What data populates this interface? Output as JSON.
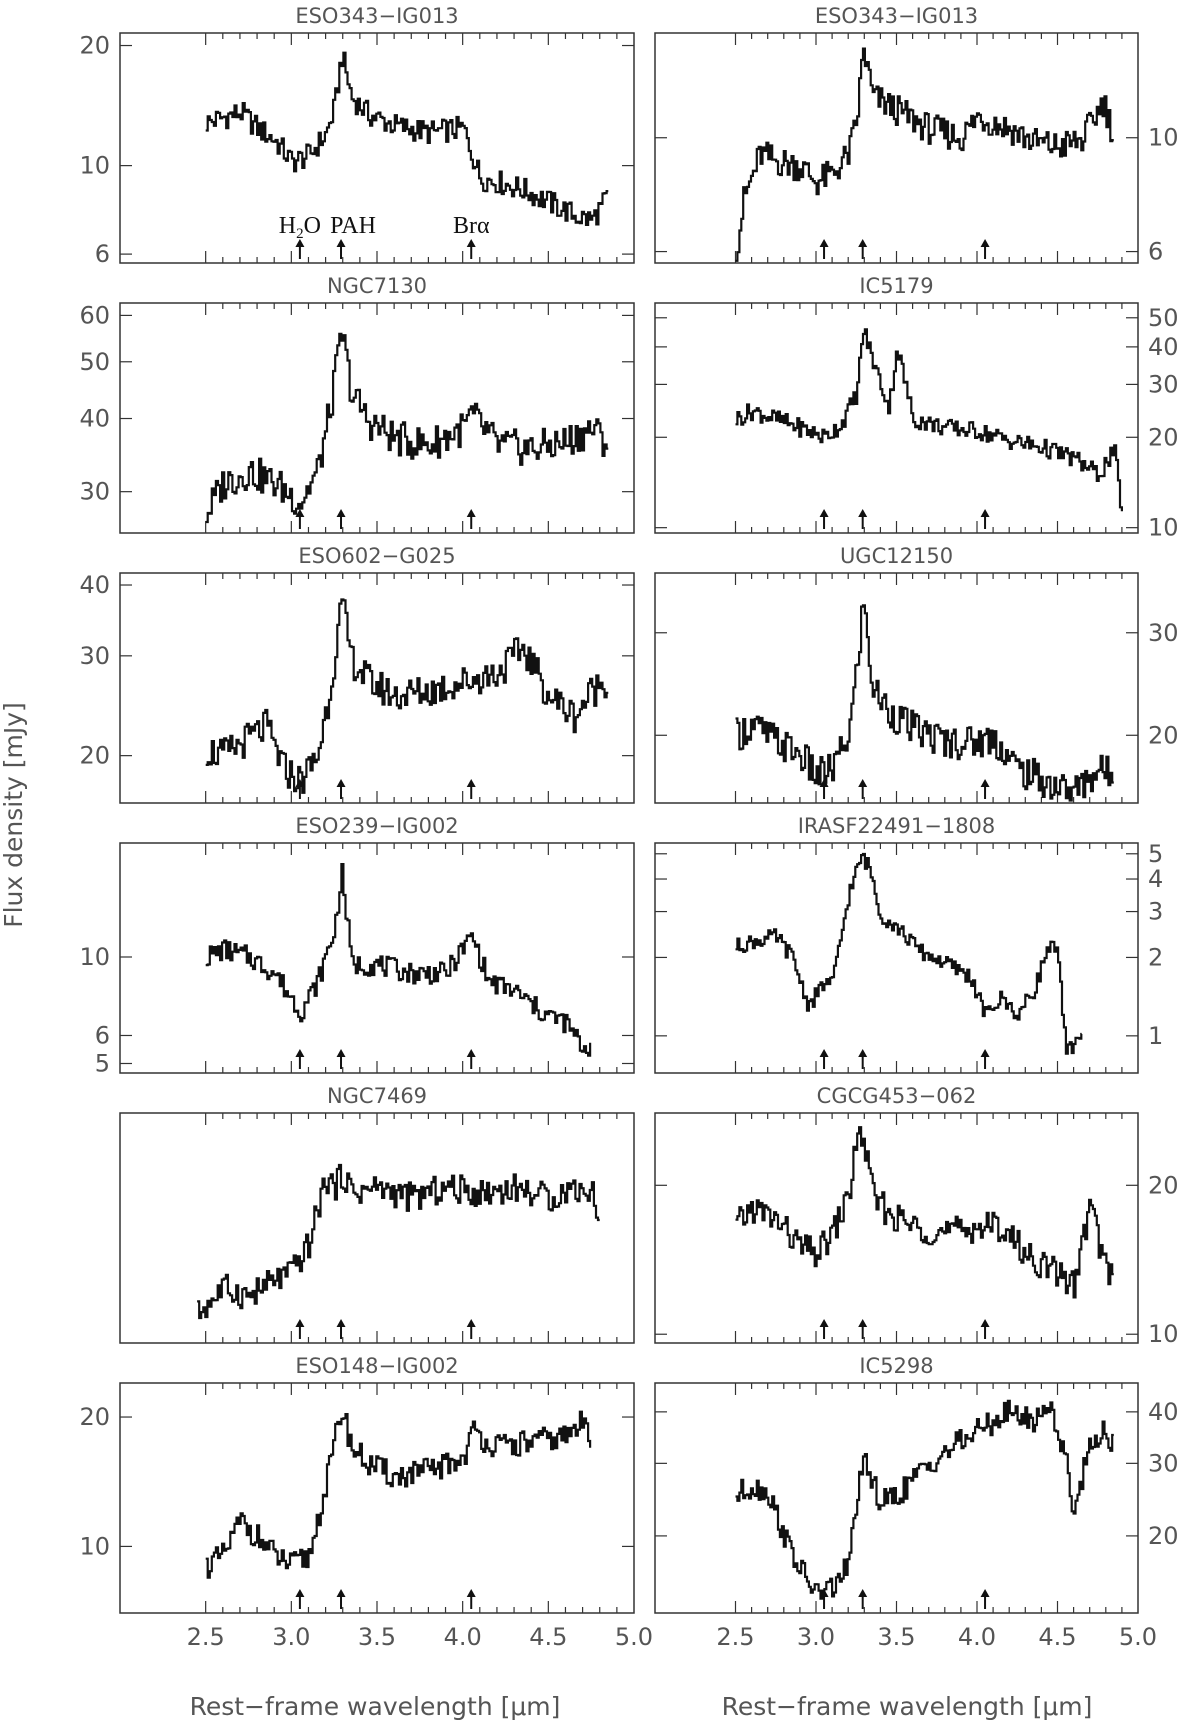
{
  "figure": {
    "ylabel": "Flux density [mJy]",
    "xlabel": "Rest−frame wavelength [μm]",
    "marker_labels": [
      {
        "h2o_main": "H",
        "h2o_sub": "2",
        "h2o_end": "O"
      },
      "PAH",
      "Brα"
    ]
  },
  "chart_data": {
    "type": "line",
    "x_axis": {
      "label": "Rest−frame wavelength [μm]",
      "range": [
        2.0,
        5.0
      ],
      "ticks": [
        2.5,
        3.0,
        3.5,
        4.0,
        4.5,
        5.0
      ],
      "tick_labels": [
        "2.5",
        "3.0",
        "3.5",
        "4.0",
        "4.5",
        "5.0"
      ]
    },
    "y_axis": {
      "label": "Flux density [mJy]",
      "scale": "log"
    },
    "markers": [
      {
        "name": "H2O",
        "x": 3.05
      },
      {
        "name": "PAH",
        "x": 3.29
      },
      {
        "name": "Brα",
        "x": 4.05
      }
    ],
    "panels": [
      {
        "title": "ESO343−IG013",
        "column": "left",
        "ylim": [
          5.7,
          21.5
        ],
        "yticks": [
          6,
          10,
          20
        ],
        "ytick_labels": [
          "6",
          "10",
          "20"
        ],
        "x": [
          2.5,
          2.6,
          2.7,
          2.8,
          2.9,
          3.0,
          3.1,
          3.2,
          3.25,
          3.29,
          3.35,
          3.45,
          3.6,
          3.8,
          4.0,
          4.1,
          4.2,
          4.35,
          4.5,
          4.65,
          4.75,
          4.85
        ],
        "flux": [
          12.8,
          13.2,
          13.6,
          12.4,
          11.6,
          10.2,
          10.6,
          12.0,
          14.0,
          19.0,
          14.8,
          13.4,
          12.6,
          12.1,
          12.4,
          9.3,
          9.1,
          8.7,
          8.1,
          7.5,
          7.3,
          8.4
        ]
      },
      {
        "title": "ESO343−IG013",
        "column": "right",
        "ylim": [
          5.7,
          16.0
        ],
        "yticks": [
          6,
          10
        ],
        "ytick_labels": [
          "6",
          "10"
        ],
        "x": [
          2.5,
          2.55,
          2.65,
          2.75,
          2.9,
          3.0,
          3.1,
          3.2,
          3.25,
          3.29,
          3.35,
          3.5,
          3.7,
          3.9,
          4.0,
          4.2,
          4.35,
          4.5,
          4.65,
          4.78,
          4.85
        ],
        "flux": [
          6.0,
          7.6,
          9.3,
          9.0,
          8.8,
          8.2,
          8.5,
          9.3,
          10.8,
          15.0,
          12.0,
          11.3,
          10.4,
          10.0,
          11.0,
          10.4,
          9.8,
          9.6,
          9.9,
          11.8,
          10.0
        ]
      },
      {
        "title": "NGC7130",
        "column": "left",
        "ylim": [
          25.5,
          63.0
        ],
        "yticks": [
          30,
          40,
          50,
          60
        ],
        "ytick_labels": [
          "30",
          "40",
          "50",
          "60"
        ],
        "x": [
          2.5,
          2.6,
          2.75,
          2.9,
          3.05,
          3.15,
          3.22,
          3.29,
          3.35,
          3.45,
          3.6,
          3.8,
          4.0,
          4.05,
          4.2,
          4.4,
          4.6,
          4.75,
          4.85
        ],
        "flux": [
          27.5,
          31.0,
          32.5,
          31.0,
          28.8,
          32.5,
          41.0,
          56.0,
          44.0,
          39.5,
          37.0,
          36.0,
          38.5,
          40.5,
          36.0,
          35.5,
          36.5,
          38.5,
          36.0
        ]
      },
      {
        "title": "IC5179",
        "column": "right",
        "ylim": [
          9.6,
          56.0
        ],
        "yticks": [
          10,
          20,
          30,
          40,
          50
        ],
        "ytick_labels": [
          "10",
          "20",
          "30",
          "40",
          "50"
        ],
        "x": [
          2.5,
          2.6,
          2.75,
          2.9,
          3.05,
          3.15,
          3.25,
          3.29,
          3.35,
          3.45,
          3.5,
          3.6,
          3.8,
          4.0,
          4.2,
          4.4,
          4.6,
          4.75,
          4.85,
          4.9
        ],
        "flux": [
          23.0,
          24.5,
          23.0,
          21.5,
          20.0,
          22.0,
          28.0,
          46.0,
          36.0,
          25.0,
          40.0,
          23.0,
          21.5,
          21.0,
          19.5,
          18.5,
          17.0,
          15.0,
          18.0,
          11.0
        ]
      },
      {
        "title": "ESO602−G025",
        "column": "left",
        "ylim": [
          16.5,
          42.0
        ],
        "yticks": [
          20,
          30,
          40
        ],
        "ytick_labels": [
          "20",
          "30",
          "40"
        ],
        "x": [
          2.5,
          2.6,
          2.75,
          2.85,
          2.95,
          3.05,
          3.15,
          3.22,
          3.29,
          3.35,
          3.45,
          3.6,
          3.8,
          4.0,
          4.2,
          4.35,
          4.5,
          4.65,
          4.75,
          4.85
        ],
        "flux": [
          20.5,
          20.0,
          21.5,
          22.5,
          19.0,
          18.0,
          20.0,
          26.0,
          37.0,
          29.5,
          27.0,
          25.5,
          26.0,
          27.0,
          28.0,
          31.0,
          25.5,
          23.5,
          26.0,
          27.5
        ]
      },
      {
        "title": "UGC12150",
        "column": "right",
        "ylim": [
          15.3,
          38.0
        ],
        "yticks": [
          20,
          30
        ],
        "ytick_labels": [
          "20",
          "30"
        ],
        "x": [
          2.5,
          2.6,
          2.75,
          2.9,
          3.0,
          3.1,
          3.2,
          3.25,
          3.29,
          3.35,
          3.45,
          3.6,
          3.8,
          4.0,
          4.1,
          4.25,
          4.45,
          4.6,
          4.75,
          4.85
        ],
        "flux": [
          20.0,
          20.8,
          19.5,
          18.5,
          17.0,
          17.5,
          20.0,
          26.0,
          34.0,
          24.0,
          22.0,
          20.5,
          19.5,
          19.5,
          19.8,
          17.5,
          16.5,
          16.0,
          17.5,
          17.0
        ]
      },
      {
        "title": "ESO239−IG002",
        "column": "left",
        "ylim": [
          4.7,
          21.0
        ],
        "yticks": [
          5,
          6,
          10
        ],
        "ytick_labels": [
          "5",
          "6",
          "10"
        ],
        "x": [
          2.5,
          2.6,
          2.75,
          2.9,
          3.05,
          3.15,
          3.25,
          3.29,
          3.35,
          3.5,
          3.7,
          3.9,
          4.05,
          4.15,
          4.3,
          4.45,
          4.6,
          4.7,
          4.75
        ],
        "flux": [
          10.0,
          10.5,
          10.0,
          9.0,
          7.0,
          8.5,
          12.0,
          17.5,
          9.5,
          9.5,
          9.0,
          9.0,
          11.5,
          8.5,
          8.0,
          7.0,
          6.5,
          5.5,
          5.6
        ]
      },
      {
        "title": "IRASF22491−1808",
        "column": "right",
        "ylim": [
          0.72,
          5.5
        ],
        "yticks": [
          1,
          2,
          3,
          4,
          5
        ],
        "ytick_labels": [
          "1",
          "2",
          "3",
          "4",
          "5"
        ],
        "x": [
          2.5,
          2.6,
          2.75,
          2.85,
          2.95,
          3.05,
          3.1,
          3.2,
          3.28,
          3.33,
          3.4,
          3.5,
          3.65,
          3.8,
          3.95,
          4.05,
          4.15,
          4.25,
          4.35,
          4.45,
          4.5,
          4.55,
          4.65
        ],
        "flux": [
          2.2,
          2.3,
          2.4,
          2.0,
          1.3,
          1.6,
          1.6,
          3.5,
          4.9,
          4.4,
          2.9,
          2.6,
          2.1,
          1.9,
          1.7,
          1.2,
          1.4,
          1.2,
          1.5,
          2.3,
          2.0,
          0.85,
          1.05
        ]
      },
      {
        "title": "NGC7469",
        "column": "left",
        "ylim": [
          1.0,
          3.0
        ],
        "yticks": [],
        "ytick_labels": [],
        "x": [
          2.45,
          2.6,
          2.75,
          2.9,
          3.0,
          3.1,
          3.15,
          3.2,
          3.25,
          3.3,
          3.35,
          3.5,
          3.7,
          3.9,
          4.1,
          4.3,
          4.5,
          4.65,
          4.75,
          4.8
        ],
        "flux": [
          1.15,
          1.3,
          1.25,
          1.35,
          1.4,
          1.6,
          1.9,
          2.2,
          2.1,
          2.25,
          2.05,
          2.1,
          2.0,
          2.1,
          2.05,
          2.1,
          2.0,
          2.1,
          2.05,
          1.85
        ]
      },
      {
        "title": "CGCG453−062",
        "column": "right",
        "ylim": [
          9.6,
          28.0
        ],
        "yticks": [
          10,
          20
        ],
        "ytick_labels": [
          "10",
          "20"
        ],
        "x": [
          2.5,
          2.6,
          2.75,
          2.9,
          3.0,
          3.1,
          3.2,
          3.25,
          3.29,
          3.35,
          3.45,
          3.6,
          3.8,
          4.0,
          4.15,
          4.3,
          4.45,
          4.55,
          4.6,
          4.7,
          4.78,
          4.85
        ],
        "flux": [
          16.5,
          18.0,
          17.0,
          15.0,
          14.5,
          16.0,
          19.0,
          25.0,
          25.0,
          19.0,
          17.5,
          16.5,
          16.0,
          16.5,
          16.5,
          14.5,
          13.5,
          13.0,
          12.5,
          18.5,
          14.0,
          13.0
        ]
      },
      {
        "title": "ESO148−IG002",
        "column": "left",
        "ylim": [
          7.0,
          24.0
        ],
        "yticks": [
          10,
          20
        ],
        "ytick_labels": [
          "10",
          "20"
        ],
        "x": [
          2.5,
          2.6,
          2.7,
          2.8,
          2.9,
          3.0,
          3.1,
          3.2,
          3.29,
          3.35,
          3.45,
          3.6,
          3.8,
          4.0,
          4.05,
          4.2,
          4.4,
          4.6,
          4.7,
          4.75
        ],
        "flux": [
          9.0,
          9.5,
          11.5,
          10.5,
          9.5,
          9.0,
          9.5,
          14.0,
          21.0,
          17.0,
          15.5,
          14.5,
          15.0,
          16.0,
          18.5,
          17.0,
          17.5,
          18.0,
          19.5,
          18.0
        ]
      },
      {
        "title": "IC5298",
        "column": "right",
        "ylim": [
          13.0,
          47.0
        ],
        "yticks": [
          20,
          30,
          40
        ],
        "ytick_labels": [
          "20",
          "30",
          "40"
        ],
        "x": [
          2.5,
          2.6,
          2.7,
          2.8,
          2.9,
          3.0,
          3.1,
          3.2,
          3.25,
          3.3,
          3.4,
          3.5,
          3.7,
          3.9,
          4.05,
          4.2,
          4.35,
          4.45,
          4.55,
          4.6,
          4.7,
          4.8,
          4.85
        ],
        "flux": [
          25.0,
          26.5,
          25.5,
          20.0,
          16.5,
          14.5,
          15.0,
          17.0,
          25.0,
          30.0,
          24.0,
          25.0,
          30.0,
          34.0,
          37.0,
          40.0,
          38.0,
          42.0,
          30.0,
          23.0,
          34.0,
          36.0,
          33.0
        ]
      }
    ]
  }
}
